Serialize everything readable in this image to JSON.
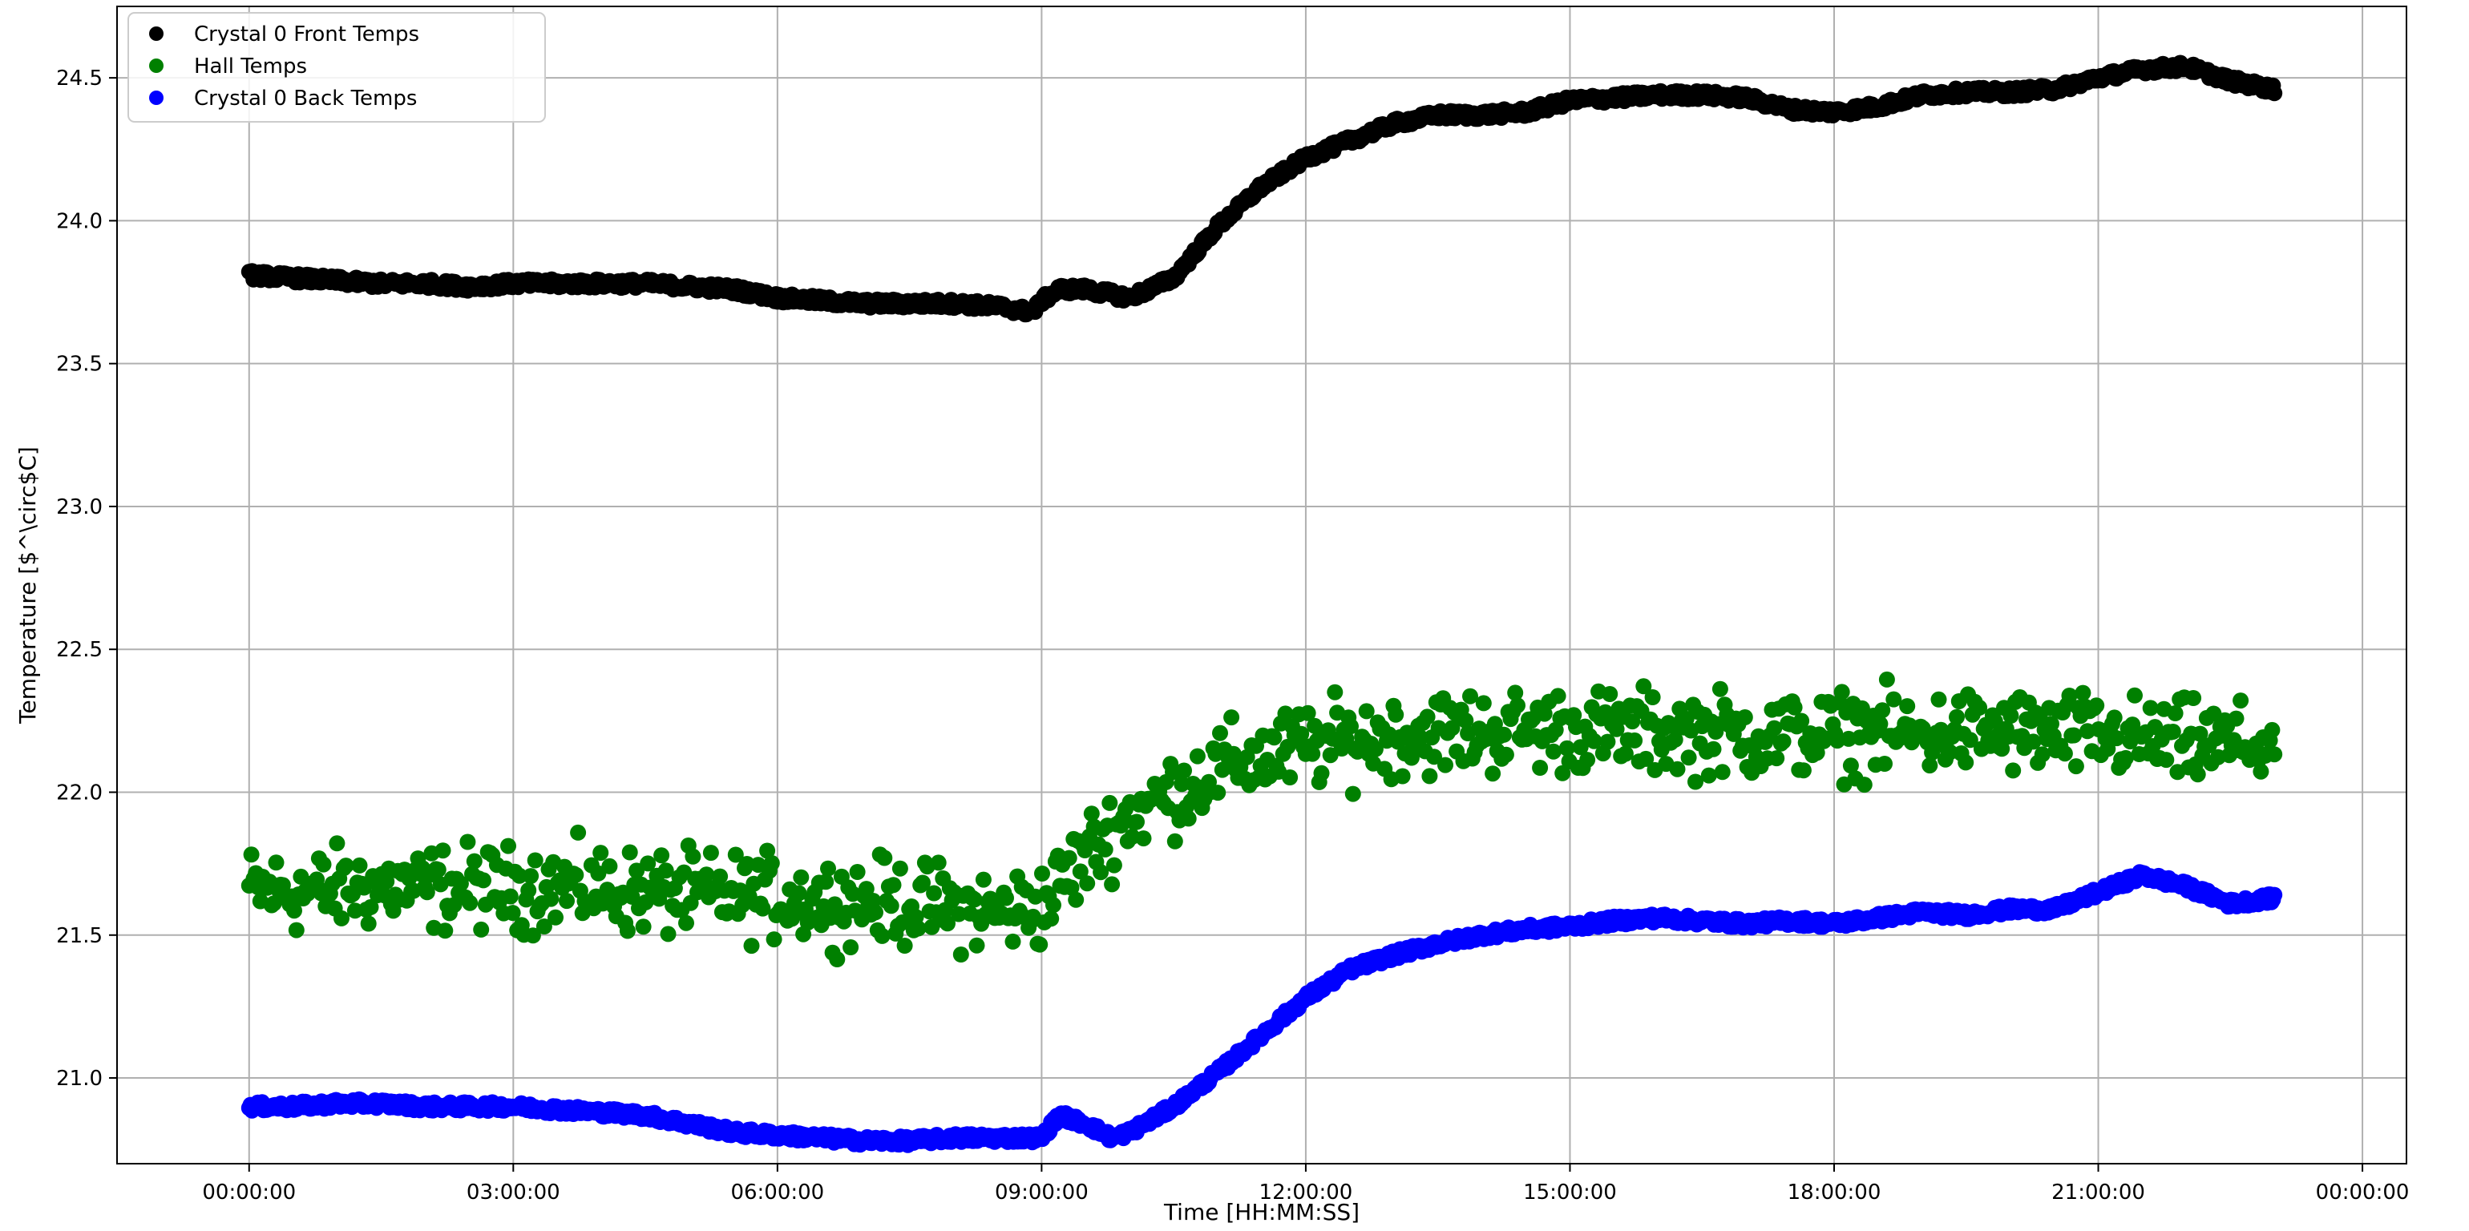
{
  "chart_data": {
    "type": "scatter",
    "xlabel": "Time [HH:MM:SS]",
    "ylabel": "Temperature [$^\\circ$C]",
    "xlim": [
      -1.5,
      24.5
    ],
    "ylim": [
      20.7,
      24.75
    ],
    "x_ticks": [
      0,
      3,
      6,
      9,
      12,
      15,
      18,
      21,
      24
    ],
    "x_tick_labels": [
      "00:00:00",
      "03:00:00",
      "06:00:00",
      "09:00:00",
      "12:00:00",
      "15:00:00",
      "18:00:00",
      "21:00:00",
      "00:00:00"
    ],
    "y_ticks": [
      21.0,
      21.5,
      22.0,
      22.5,
      23.0,
      23.5,
      24.0,
      24.5
    ],
    "y_tick_labels": [
      "21.0",
      "21.5",
      "22.0",
      "22.5",
      "23.0",
      "23.5",
      "24.0",
      "24.5"
    ],
    "grid": true,
    "legend_position": "top-left",
    "series": [
      {
        "name": "Crystal 0 Front Temps",
        "color": "#000000",
        "x": [
          0.0,
          0.5,
          1.0,
          1.5,
          2.0,
          2.5,
          3.0,
          3.5,
          4.0,
          4.5,
          5.0,
          5.5,
          6.0,
          6.5,
          7.0,
          7.5,
          8.0,
          8.5,
          8.9,
          9.0,
          9.2,
          9.5,
          10.0,
          10.5,
          11.0,
          11.5,
          12.0,
          12.5,
          13.0,
          13.5,
          14.0,
          14.5,
          15.0,
          15.5,
          16.0,
          16.5,
          17.0,
          17.5,
          18.0,
          18.5,
          19.0,
          19.5,
          20.0,
          20.5,
          21.0,
          21.5,
          22.0,
          22.5,
          23.0
        ],
        "y": [
          23.81,
          23.8,
          23.79,
          23.78,
          23.78,
          23.77,
          23.78,
          23.78,
          23.78,
          23.78,
          23.77,
          23.76,
          23.73,
          23.72,
          23.71,
          23.71,
          23.71,
          23.7,
          23.68,
          23.72,
          23.76,
          23.76,
          23.73,
          23.8,
          23.98,
          24.12,
          24.22,
          24.28,
          24.34,
          24.37,
          24.37,
          24.38,
          24.42,
          24.43,
          24.44,
          24.44,
          24.43,
          24.39,
          24.38,
          24.4,
          24.44,
          24.45,
          24.45,
          24.46,
          24.5,
          24.53,
          24.54,
          24.49,
          24.46
        ]
      },
      {
        "name": "Hall Temps",
        "color": "#008000",
        "x": [
          0.0,
          0.5,
          1.0,
          1.5,
          2.0,
          2.5,
          3.0,
          3.5,
          4.0,
          4.5,
          5.0,
          5.5,
          6.0,
          6.5,
          7.0,
          7.5,
          8.0,
          8.5,
          9.0,
          9.5,
          10.0,
          10.5,
          11.0,
          11.5,
          12.0,
          12.5,
          13.0,
          13.5,
          14.0,
          14.5,
          15.0,
          15.5,
          16.0,
          16.5,
          17.0,
          17.5,
          18.0,
          18.5,
          19.0,
          19.5,
          20.0,
          20.5,
          21.0,
          21.5,
          22.0,
          22.5,
          23.0
        ],
        "y": [
          21.66,
          21.65,
          21.66,
          21.67,
          21.66,
          21.67,
          21.66,
          21.67,
          21.66,
          21.65,
          21.64,
          21.64,
          21.63,
          21.62,
          21.62,
          21.61,
          21.6,
          21.58,
          21.6,
          21.78,
          21.92,
          22.0,
          22.08,
          22.12,
          22.16,
          22.18,
          22.2,
          22.21,
          22.21,
          22.22,
          22.22,
          22.21,
          22.21,
          22.21,
          22.2,
          22.2,
          22.2,
          22.21,
          22.2,
          22.21,
          22.21,
          22.2,
          22.2,
          22.18,
          22.17,
          22.17,
          22.16
        ],
        "spread": 0.12
      },
      {
        "name": "Crystal 0 Back Temps",
        "color": "#0000ff",
        "x": [
          0.0,
          0.5,
          1.0,
          1.5,
          2.0,
          2.5,
          3.0,
          3.5,
          4.0,
          4.5,
          5.0,
          5.5,
          6.0,
          6.5,
          7.0,
          7.5,
          8.0,
          8.5,
          9.0,
          9.2,
          9.5,
          9.8,
          10.0,
          10.5,
          11.0,
          11.5,
          12.0,
          12.5,
          13.0,
          13.5,
          14.0,
          14.5,
          15.0,
          15.5,
          16.0,
          16.5,
          17.0,
          17.5,
          18.0,
          18.5,
          19.0,
          19.5,
          20.0,
          20.5,
          21.0,
          21.5,
          22.0,
          22.5,
          23.0
        ],
        "y": [
          20.9,
          20.9,
          20.91,
          20.91,
          20.9,
          20.9,
          20.9,
          20.89,
          20.88,
          20.87,
          20.84,
          20.81,
          20.8,
          20.79,
          20.78,
          20.78,
          20.79,
          20.79,
          20.79,
          20.87,
          20.84,
          20.79,
          20.81,
          20.9,
          21.02,
          21.15,
          21.28,
          21.38,
          21.43,
          21.47,
          21.5,
          21.52,
          21.53,
          21.55,
          21.56,
          21.55,
          21.54,
          21.55,
          21.54,
          21.56,
          21.58,
          21.57,
          21.59,
          21.59,
          21.65,
          21.71,
          21.67,
          21.61,
          21.63
        ]
      }
    ]
  }
}
